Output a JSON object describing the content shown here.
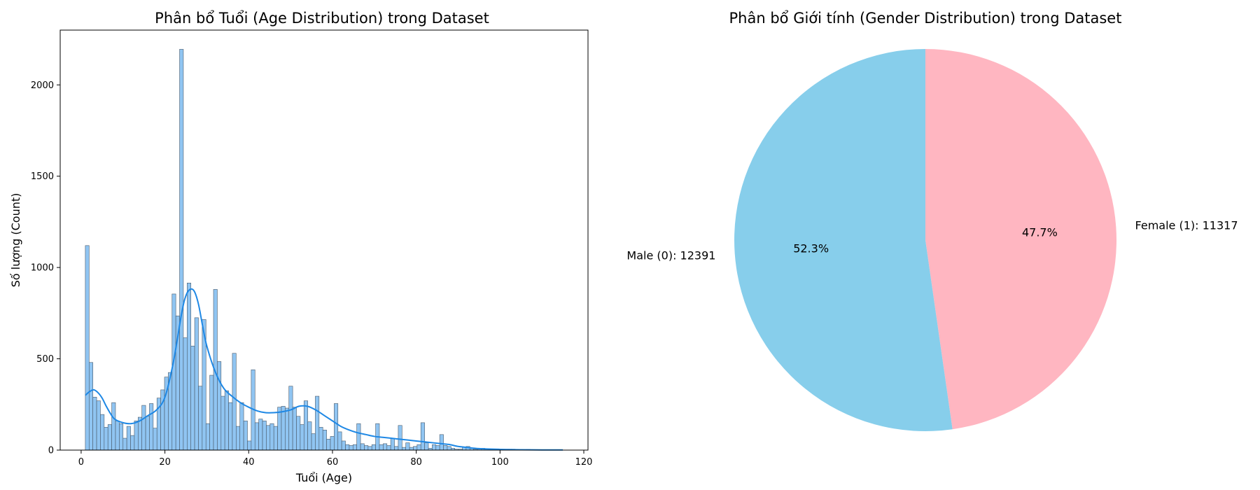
{
  "chart_data": [
    {
      "type": "bar",
      "subtype": "histogram-with-kde",
      "title": "Phân bổ Tuổi (Age Distribution) trong Dataset",
      "xlabel": "Tuổi (Age)",
      "ylabel": "Số lượng (Count)",
      "xlim": [
        -5,
        121
      ],
      "ylim": [
        0,
        2300
      ],
      "xticks": [
        0,
        20,
        40,
        60,
        80,
        100,
        120
      ],
      "yticks": [
        0,
        500,
        1000,
        1500,
        2000
      ],
      "grid": false,
      "bar_color": "#90c5f2",
      "edge_color": "#4a5a6a",
      "kde_color": "#1e88e5",
      "bins": {
        "start": 1,
        "width": 0.9,
        "counts": [
          1120,
          480,
          290,
          270,
          195,
          125,
          140,
          260,
          160,
          145,
          65,
          130,
          80,
          160,
          180,
          245,
          185,
          255,
          120,
          285,
          330,
          400,
          425,
          855,
          735,
          2195,
          615,
          915,
          570,
          725,
          350,
          715,
          145,
          410,
          880,
          485,
          295,
          325,
          260,
          530,
          130,
          260,
          160,
          50,
          440,
          150,
          170,
          160,
          135,
          145,
          130,
          235,
          240,
          230,
          350,
          235,
          185,
          140,
          270,
          155,
          90,
          295,
          125,
          110,
          60,
          75,
          255,
          100,
          50,
          30,
          25,
          30,
          145,
          35,
          25,
          20,
          30,
          145,
          30,
          35,
          25,
          65,
          20,
          135,
          15,
          40,
          15,
          20,
          30,
          150,
          40,
          10,
          30,
          25,
          85,
          25,
          20,
          10,
          5,
          5,
          15,
          20,
          10,
          5,
          5,
          10,
          5,
          5,
          5,
          5,
          3,
          0,
          5,
          5,
          3,
          2,
          3,
          4,
          2
        ]
      },
      "kde": {
        "x": [
          1,
          2,
          3,
          4,
          5,
          6,
          7,
          8,
          10,
          12,
          14,
          16,
          18,
          20,
          22,
          24,
          25,
          26,
          27,
          28,
          29,
          30,
          32,
          34,
          36,
          38,
          40,
          42,
          44,
          46,
          48,
          50,
          52,
          54,
          56,
          58,
          60,
          62,
          64,
          66,
          68,
          70,
          72,
          74,
          76,
          78,
          80,
          82,
          84,
          86,
          88,
          90,
          92,
          95,
          100,
          105,
          110,
          115
        ],
        "y": [
          300,
          320,
          330,
          315,
          285,
          240,
          200,
          170,
          150,
          145,
          160,
          190,
          220,
          290,
          480,
          750,
          845,
          880,
          870,
          800,
          680,
          570,
          430,
          340,
          295,
          260,
          235,
          215,
          205,
          205,
          210,
          220,
          240,
          240,
          220,
          190,
          160,
          130,
          110,
          95,
          85,
          75,
          70,
          65,
          60,
          55,
          50,
          45,
          40,
          35,
          30,
          20,
          15,
          8,
          4,
          2,
          1,
          1
        ]
      }
    },
    {
      "type": "pie",
      "title": "Phân bổ Giới tính (Gender Distribution) trong Dataset",
      "start_angle_deg": 90,
      "direction": "clockwise",
      "slices": [
        {
          "label": "Female (1): 11317",
          "value": 11317,
          "pct": "47.7%",
          "color": "#ffb6c1"
        },
        {
          "label": "Male (0): 12391",
          "value": 12391,
          "pct": "52.3%",
          "color": "#87ceeb"
        }
      ]
    }
  ]
}
